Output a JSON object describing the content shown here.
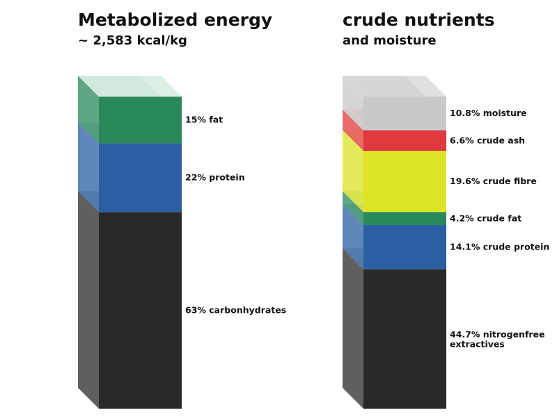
{
  "chart_data": [
    {
      "type": "bar",
      "stacked": true,
      "title": "Metabolized energy",
      "subtitle": "~ 2,583 kcal/kg",
      "segments": [
        {
          "label": "15% fat",
          "value": 15,
          "color": "#29895a"
        },
        {
          "label": "22% protein",
          "value": 22,
          "color": "#2a5fa3"
        },
        {
          "label": "63% carbonhydrates",
          "value": 63,
          "color": "#292929"
        }
      ]
    },
    {
      "type": "bar",
      "stacked": true,
      "title": "crude nutrients",
      "subtitle": "and moisture",
      "segments": [
        {
          "label": "10.8% moisture",
          "value": 10.8,
          "color": "#c9c9c9"
        },
        {
          "label": "6.6% crude ash",
          "value": 6.6,
          "color": "#e03a3e"
        },
        {
          "label": "19.6% crude fibre",
          "value": 19.6,
          "color": "#dde325"
        },
        {
          "label": "4.2% crude fat",
          "value": 4.2,
          "color": "#29895a"
        },
        {
          "label": "14.1% crude protein",
          "value": 14.1,
          "color": "#2a5fa3"
        },
        {
          "label": "44.7% nitrogenfree extractives",
          "value": 44.7,
          "color": "#292929"
        }
      ]
    }
  ]
}
